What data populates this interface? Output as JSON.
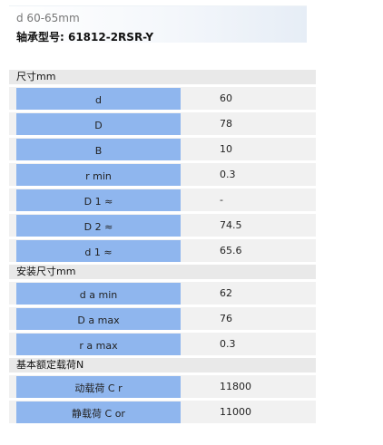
{
  "header": {
    "range": "d 60-65mm",
    "model_label": "轴承型号: 61812-2RSR-Y"
  },
  "sections": [
    {
      "title": "尺寸mm",
      "rows": [
        {
          "label": "d",
          "value": "60"
        },
        {
          "label": "D",
          "value": "78"
        },
        {
          "label": "B",
          "value": "10"
        },
        {
          "label": "r min",
          "value": "0.3"
        },
        {
          "label": "D 1 ≈",
          "value": "-"
        },
        {
          "label": "D 2 ≈",
          "value": "74.5"
        },
        {
          "label": "d 1 ≈",
          "value": "65.6"
        }
      ]
    },
    {
      "title": "安装尺寸mm",
      "rows": [
        {
          "label": "d a min",
          "value": "62"
        },
        {
          "label": "D a max",
          "value": "76"
        },
        {
          "label": "r a max",
          "value": "0.3"
        }
      ]
    },
    {
      "title": "基本额定载荷N",
      "rows": [
        {
          "label": "动载荷 C r",
          "value": "11800"
        },
        {
          "label": "静载荷 C or",
          "value": "11000"
        }
      ]
    }
  ]
}
